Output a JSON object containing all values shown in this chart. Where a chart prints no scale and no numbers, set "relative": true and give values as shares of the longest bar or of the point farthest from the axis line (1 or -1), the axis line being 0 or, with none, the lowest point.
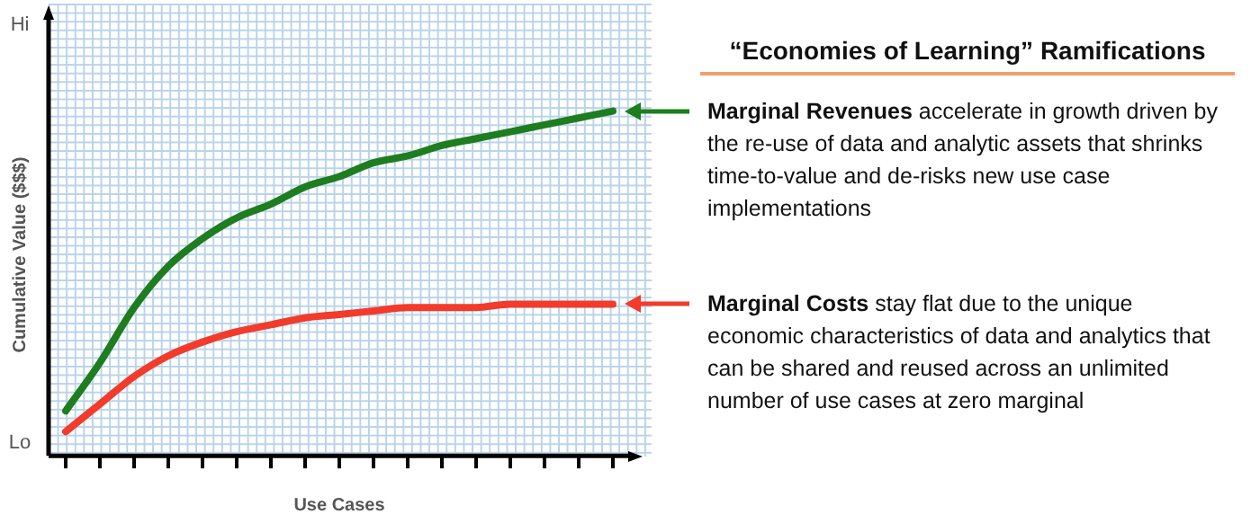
{
  "chart_data": {
    "type": "line",
    "relative": true,
    "title": "“Economies of Learning” Ramifications",
    "xlabel": "Use Cases",
    "ylabel": "Cumulative Value ($$$)",
    "categories": [
      null,
      null,
      null,
      null,
      null,
      null,
      null,
      null,
      null,
      null,
      null,
      null,
      null,
      null,
      null,
      null,
      null
    ],
    "series": [
      {
        "color": "#1e7d1e",
        "values": [
          0.13,
          0.27,
          0.43,
          0.55,
          0.63,
          0.69,
          0.73,
          0.78,
          0.81,
          0.85,
          0.87,
          0.9,
          0.92,
          0.94,
          0.96,
          0.98,
          1
        ]
      },
      {
        "color": "#f23b2a",
        "values": [
          0.07,
          0.15,
          0.23,
          0.29,
          0.33,
          0.36,
          0.38,
          0.4,
          0.41,
          0.42,
          0.43,
          0.43,
          0.43,
          0.44,
          0.44,
          0.44,
          0.44
        ]
      }
    ],
    "annotations": [
      "Hi",
      "Lo",
      "Marginal Revenues",
      "accelerate in growth driven by the re-use of data and analytic assets that shrinks time-to-value and de-risks new use case implementations",
      "Marginal Costs",
      "stay flat due to the unique economic characteristics of data and analytics that can be shared and reused across an unlimited number of use cases at zero marginal"
    ],
    "grid": false,
    "legend": false,
    "marker": "none",
    "line_style": "solid"
  }
}
